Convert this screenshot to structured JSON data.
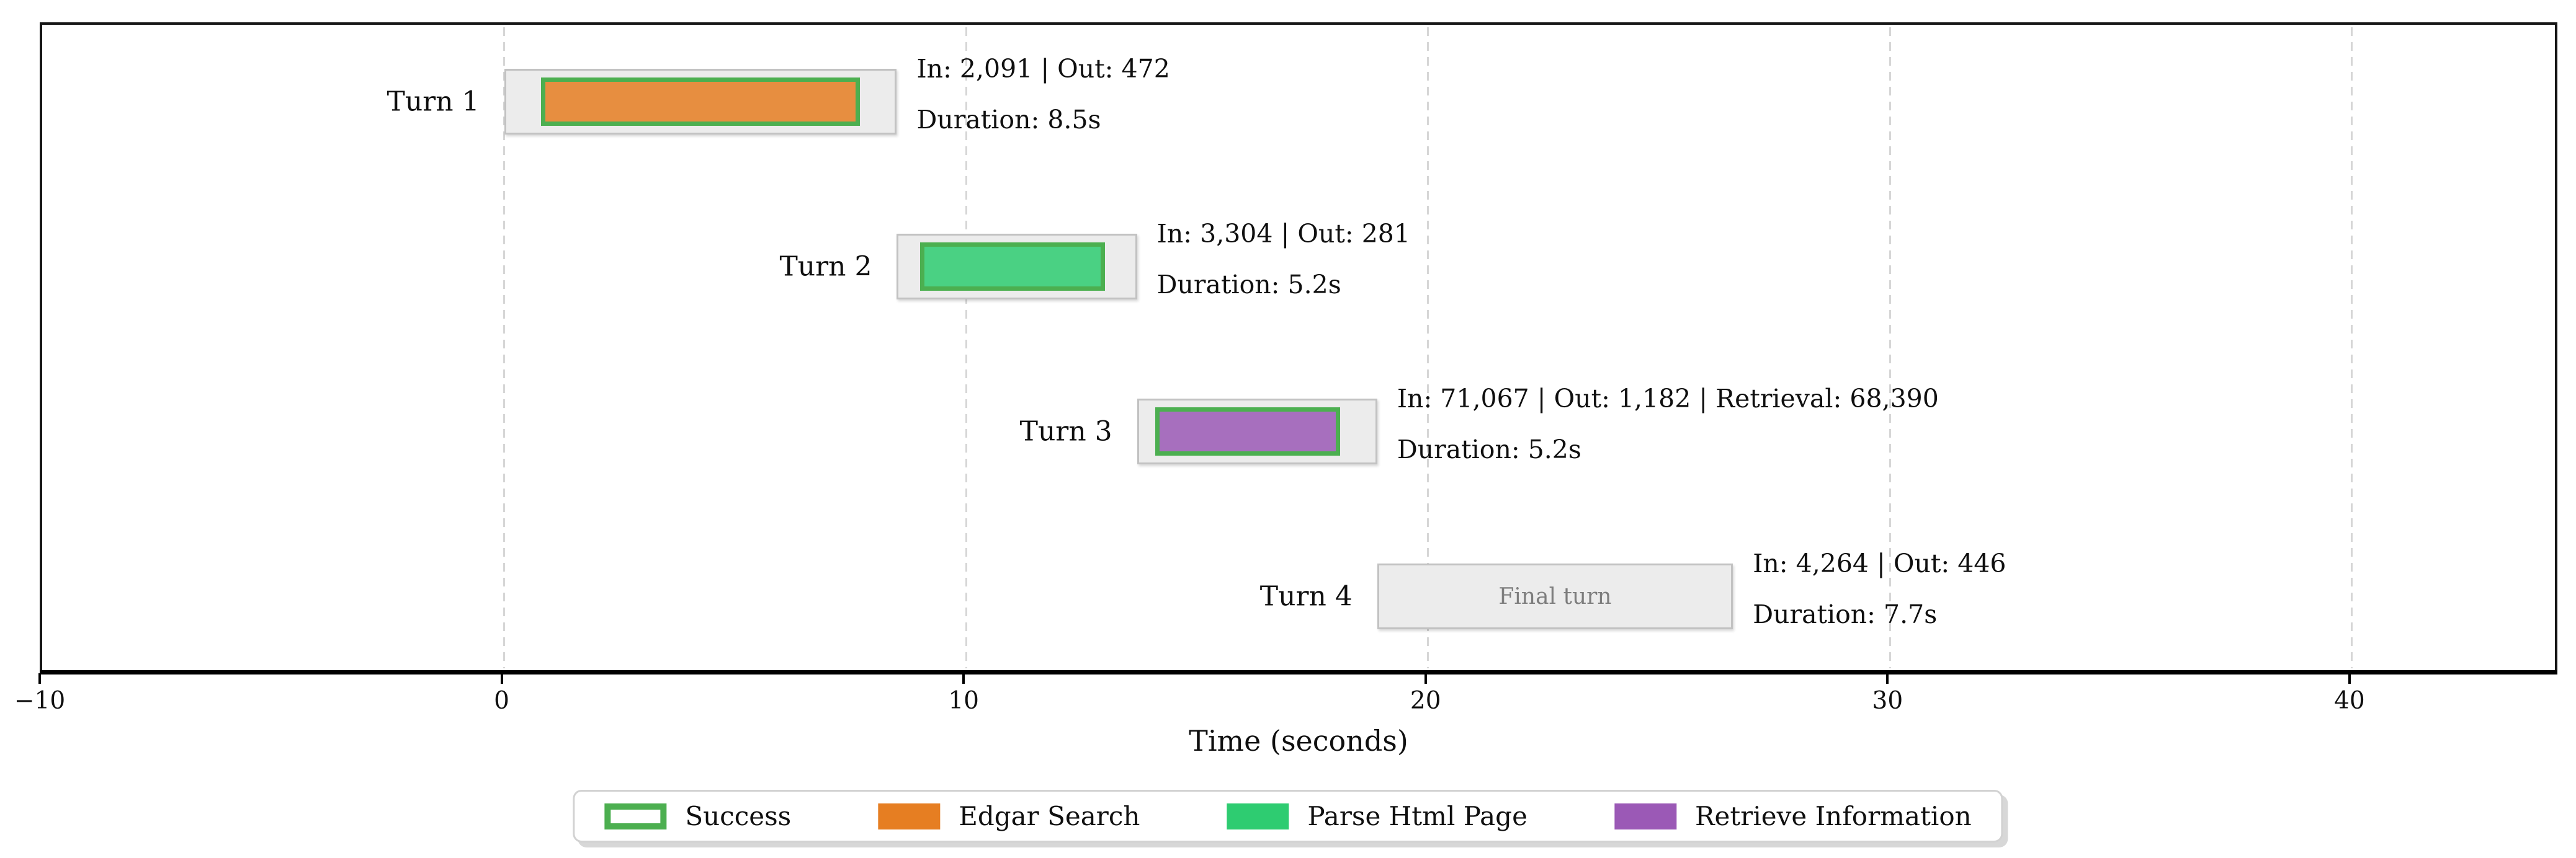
{
  "chart_data": {
    "type": "bar",
    "subtype": "gantt-turn-timeline",
    "title": "",
    "xlabel": "Time (seconds)",
    "xlim": [
      -10.0,
      44.5
    ],
    "xticks": [
      -10,
      0,
      10,
      20,
      30,
      40
    ],
    "xtick_labels": [
      "−10",
      "0",
      "10",
      "20",
      "30",
      "40"
    ],
    "grid": {
      "axis": "x",
      "style": "dashed",
      "color": "#d6d6d6"
    },
    "legend_position": "bottom-center-outside",
    "categories": [
      "Turn 1",
      "Turn 2",
      "Turn 3",
      "Turn 4"
    ],
    "turns": [
      {
        "label": "Turn 1",
        "window_start": 0.0,
        "window_end": 8.5,
        "duration_s": 8.5,
        "tokens_in": "2,091",
        "tokens_out": "472",
        "annotation_line1": "In: 2,091 | Out: 472",
        "annotation_line2": "Duration: 8.5s",
        "tool": {
          "name": "Edgar Search",
          "start": 0.8,
          "end": 7.7,
          "color": "#e67e22",
          "success": true
        }
      },
      {
        "label": "Turn 2",
        "window_start": 8.5,
        "window_end": 13.7,
        "duration_s": 5.2,
        "tokens_in": "3,304",
        "tokens_out": "281",
        "annotation_line1": "In: 3,304 | Out: 281",
        "annotation_line2": "Duration: 5.2s",
        "tool": {
          "name": "Parse Html Page",
          "start": 9.0,
          "end": 13.0,
          "color": "#2ecc71",
          "success": true
        }
      },
      {
        "label": "Turn 3",
        "window_start": 13.7,
        "window_end": 18.9,
        "duration_s": 5.2,
        "tokens_in": "71,067",
        "tokens_out": "1,182",
        "retrieval": "68,390",
        "annotation_line1": "In: 71,067 | Out: 1,182 | Retrieval: 68,390",
        "annotation_line2": "Duration: 5.2s",
        "tool": {
          "name": "Retrieve Information",
          "start": 14.1,
          "end": 18.1,
          "color": "#9b59b6",
          "success": true
        }
      },
      {
        "label": "Turn 4",
        "window_start": 18.9,
        "window_end": 26.6,
        "duration_s": 7.7,
        "tokens_in": "4,264",
        "tokens_out": "446",
        "annotation_line1": "In: 4,264 | Out: 446",
        "annotation_line2": "Duration: 7.7s",
        "bar_text": "Final turn",
        "tool": null
      }
    ],
    "legend": {
      "items": [
        {
          "label": "Success",
          "swatch": "outline",
          "color": "#4caf50"
        },
        {
          "label": "Edgar Search",
          "swatch": "filled",
          "color": "#e67e22"
        },
        {
          "label": "Parse Html Page",
          "swatch": "filled",
          "color": "#2ecc71"
        },
        {
          "label": "Retrieve Information",
          "swatch": "filled",
          "color": "#9b59b6"
        }
      ]
    },
    "colors": {
      "window_fill": "#ececec",
      "window_border": "#c2c2c2",
      "success_border": "#4caf50",
      "final_turn_text": "#7d7d7d",
      "axis": "#000000",
      "text": "#0f0f0f"
    }
  }
}
